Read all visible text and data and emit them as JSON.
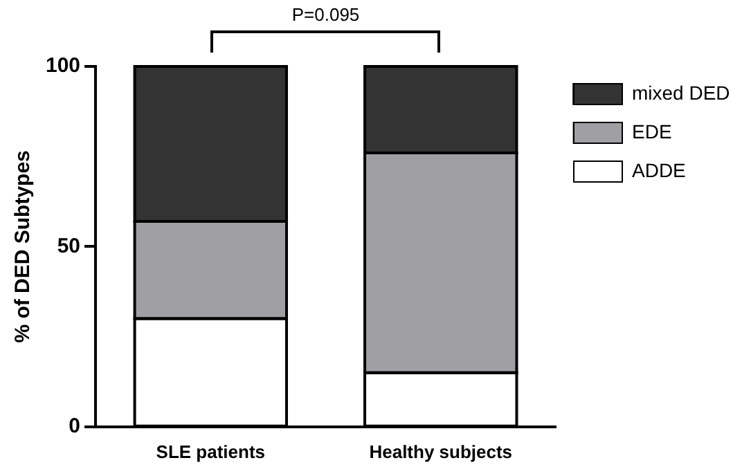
{
  "chart_data": {
    "type": "bar",
    "stacked": true,
    "ylabel": "% of DED Subtypes",
    "categories": [
      "SLE patients",
      "Healthy subjects"
    ],
    "series": [
      {
        "name": "ADDE",
        "color": "#ffffff",
        "values": [
          30,
          15
        ]
      },
      {
        "name": "EDE",
        "color": "#a0a0a4",
        "values": [
          27,
          61
        ]
      },
      {
        "name": "mixed DED",
        "color": "#333333",
        "values": [
          43,
          24
        ]
      }
    ],
    "ylim": [
      0,
      100
    ],
    "yticks": [
      0,
      50,
      100
    ],
    "grid": false,
    "legend": "top right",
    "annotations": [
      "P=0.095"
    ]
  }
}
